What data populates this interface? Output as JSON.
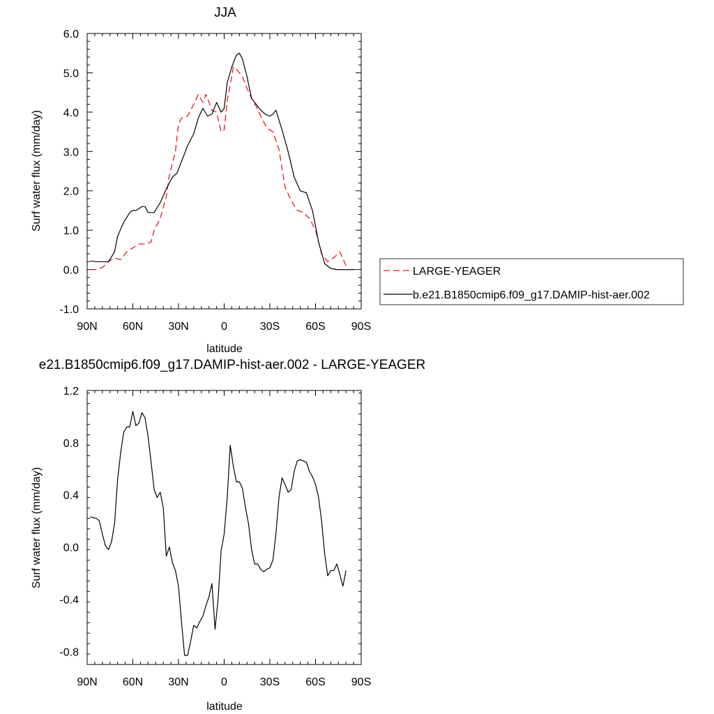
{
  "chart_data": [
    {
      "type": "line",
      "title": "JJA",
      "xlabel": "latitude",
      "ylabel": "Surf water flux (mm/day)",
      "xlim": [
        90,
        -90
      ],
      "ylim": [
        -1.0,
        6.0
      ],
      "xticks": [
        90,
        60,
        30,
        0,
        -30,
        -60,
        -90
      ],
      "xtick_labels": [
        "90N",
        "60N",
        "30N",
        "0",
        "30S",
        "60S",
        "90S"
      ],
      "yticks": [
        -1.0,
        0.0,
        1.0,
        2.0,
        3.0,
        4.0,
        5.0,
        6.0
      ],
      "ytick_labels": [
        "-1.0",
        "0.0",
        "1.0",
        "2.0",
        "3.0",
        "4.0",
        "5.0",
        "6.0"
      ],
      "legend_position": "right",
      "series": [
        {
          "name": "LARGE-YEAGER",
          "color": "#e41a1c",
          "dash": "dashed",
          "x": [
            88,
            84,
            80,
            76,
            72,
            68,
            64,
            60,
            56,
            52,
            48,
            46,
            42,
            38,
            36,
            32,
            30,
            28,
            24,
            20,
            17,
            14,
            12,
            10,
            8,
            5,
            2,
            0,
            -2,
            -4,
            -6,
            -9,
            -12,
            -15,
            -18,
            -21,
            -24,
            -28,
            -32,
            -36,
            -40,
            -44,
            -48,
            -52,
            -56,
            -60,
            -64,
            -68,
            -72,
            -76,
            -80,
            -82
          ],
          "y": [
            0.0,
            0.0,
            0.05,
            0.2,
            0.3,
            0.25,
            0.45,
            0.55,
            0.65,
            0.65,
            0.7,
            1.0,
            1.3,
            1.85,
            2.4,
            3.0,
            3.7,
            3.85,
            3.9,
            4.2,
            4.45,
            4.25,
            4.45,
            4.25,
            4.05,
            4.0,
            3.5,
            3.55,
            4.3,
            4.7,
            5.15,
            5.05,
            4.9,
            4.6,
            4.35,
            4.15,
            3.9,
            3.6,
            3.5,
            3.05,
            2.1,
            1.75,
            1.5,
            1.45,
            1.3,
            1.0,
            0.4,
            0.2,
            0.3,
            0.45,
            0.1,
            0.05
          ]
        },
        {
          "name": "b.e21.B1850cmip6.f09_g17.DAMIP-hist-aer.002",
          "color": "#000000",
          "dash": "solid",
          "x": [
            88,
            84,
            80,
            76,
            72,
            70,
            66,
            62,
            60,
            58,
            54,
            52,
            50,
            46,
            42,
            38,
            34,
            31,
            28,
            24,
            20,
            17,
            14,
            11,
            8,
            5,
            2,
            0,
            -2,
            -5,
            -8,
            -10,
            -12,
            -15,
            -18,
            -21,
            -24,
            -27,
            -30,
            -32,
            -34,
            -38,
            -42,
            -46,
            -50,
            -54,
            -58,
            -62,
            -66,
            -70,
            -74,
            -78,
            -82,
            -86
          ],
          "y": [
            0.22,
            0.2,
            0.2,
            0.2,
            0.45,
            0.85,
            1.2,
            1.45,
            1.5,
            1.5,
            1.6,
            1.6,
            1.45,
            1.45,
            1.7,
            2.05,
            2.35,
            2.45,
            2.75,
            3.15,
            3.45,
            3.85,
            4.1,
            3.9,
            3.95,
            4.25,
            4.0,
            4.1,
            4.75,
            5.15,
            5.45,
            5.5,
            5.35,
            4.9,
            4.35,
            4.2,
            4.05,
            3.95,
            3.9,
            3.95,
            4.05,
            3.55,
            3.0,
            2.35,
            2.0,
            1.95,
            1.5,
            0.7,
            0.15,
            0.03,
            0.0,
            0.0,
            0.0,
            0.0
          ]
        }
      ]
    },
    {
      "type": "line",
      "title": "e21.B1850cmip6.f09_g17.DAMIP-hist-aer.002 - LARGE-YEAGER",
      "xlabel": "latitude",
      "ylabel": "Surf water flux (mm/day)",
      "xlim": [
        90,
        -90
      ],
      "ylim": [
        -0.9,
        1.2
      ],
      "xticks": [
        90,
        60,
        30,
        0,
        -30,
        -60,
        -90
      ],
      "xtick_labels": [
        "90N",
        "60N",
        "30N",
        "0",
        "30S",
        "60S",
        "90S"
      ],
      "yticks": [
        -0.8,
        -0.4,
        0.0,
        0.4,
        0.8,
        1.2
      ],
      "ytick_labels": [
        "-0.8",
        "-0.4",
        "0.0",
        "0.4",
        "0.8",
        "1.2"
      ],
      "series": [
        {
          "color": "#000000",
          "dash": "solid",
          "x": [
            88,
            84,
            82,
            80,
            78,
            76,
            74,
            72,
            70,
            68,
            66,
            64,
            62,
            60,
            58,
            56,
            54,
            52,
            50,
            48,
            46,
            44,
            42,
            40,
            38,
            36,
            34,
            32,
            30,
            28,
            26,
            24,
            22,
            20,
            18,
            16,
            14,
            12,
            10,
            8,
            6,
            4,
            2,
            0,
            -2,
            -4,
            -6,
            -8,
            -10,
            -12,
            -14,
            -16,
            -18,
            -20,
            -22,
            -24,
            -26,
            -28,
            -30,
            -32,
            -34,
            -36,
            -38,
            -40,
            -42,
            -44,
            -46,
            -48,
            -50,
            -52,
            -54,
            -56,
            -58,
            -60,
            -62,
            -64,
            -66,
            -68,
            -70,
            -72,
            -74,
            -76,
            -78,
            -80
          ],
          "y": [
            0.23,
            0.22,
            0.2,
            0.1,
            0.01,
            -0.02,
            0.04,
            0.18,
            0.52,
            0.72,
            0.88,
            0.92,
            0.92,
            1.04,
            0.93,
            0.95,
            1.03,
            0.99,
            0.85,
            0.65,
            0.44,
            0.38,
            0.42,
            0.3,
            -0.07,
            0.0,
            -0.12,
            -0.18,
            -0.3,
            -0.58,
            -0.83,
            -0.83,
            -0.72,
            -0.6,
            -0.62,
            -0.57,
            -0.53,
            -0.45,
            -0.38,
            -0.28,
            -0.63,
            -0.4,
            -0.03,
            0.1,
            0.38,
            0.78,
            0.62,
            0.5,
            0.5,
            0.45,
            0.3,
            0.18,
            -0.02,
            -0.13,
            -0.13,
            -0.17,
            -0.19,
            -0.17,
            -0.16,
            -0.1,
            0.1,
            0.38,
            0.53,
            0.48,
            0.42,
            0.44,
            0.58,
            0.66,
            0.67,
            0.66,
            0.65,
            0.58,
            0.54,
            0.48,
            0.38,
            0.2,
            -0.05,
            -0.22,
            -0.18,
            -0.18,
            -0.13,
            -0.21,
            -0.3,
            -0.18
          ]
        }
      ]
    }
  ]
}
